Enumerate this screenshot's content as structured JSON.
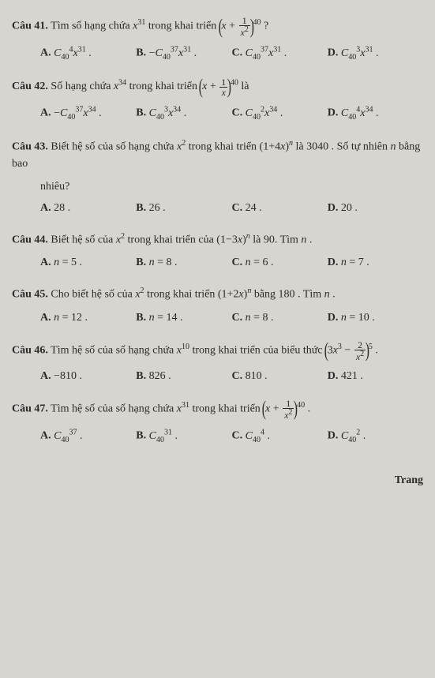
{
  "questions": [
    {
      "label": "Câu 41.",
      "stem_html": "Tìm số hạng chứa <i>x</i><sup>31</sup> trong khai triển <span class=\"par\">(</span><i>x</i> + <span class=\"frac\"><span class=\"n\">1</span><span class=\"d\"><i>x</i><sup>2</sup></span></span><span class=\"par\">)</span><sup>40</sup> ?",
      "sub": null,
      "opts": [
        "<i>C</i><sub>40</sub><sup>4</sup><i>x</i><sup>31</sup> .",
        "−<i>C</i><sub>40</sub><sup>37</sup><i>x</i><sup>31</sup> .",
        "<i>C</i><sub>40</sub><sup>37</sup><i>x</i><sup>31</sup> .",
        "<i>C</i><sub>40</sub><sup>3</sup><i>x</i><sup>31</sup> ."
      ]
    },
    {
      "label": "Câu 42.",
      "stem_html": "Số hạng chứa <i>x</i><sup>34</sup> trong khai triển <span class=\"par\">(</span><i>x</i> + <span class=\"frac\"><span class=\"n\">1</span><span class=\"d\"><i>x</i></span></span><span class=\"par\">)</span><sup>40</sup> là",
      "sub": null,
      "opts": [
        "−<i>C</i><sub>40</sub><sup>37</sup><i>x</i><sup>34</sup> .",
        "<i>C</i><sub>40</sub><sup>3</sup><i>x</i><sup>34</sup> .",
        "<i>C</i><sub>40</sub><sup>2</sup><i>x</i><sup>34</sup> .",
        "<i>C</i><sub>40</sub><sup>4</sup><i>x</i><sup>34</sup> ."
      ]
    },
    {
      "label": "Câu 43.",
      "stem_html": "Biết hệ số của số hạng chứa <i>x</i><sup>2</sup> trong khai triển (1+4<i>x</i>)<sup><i>n</i></sup> là 3040 . Số tự nhiên <i>n</i> bằng bao",
      "sub": "nhiêu?",
      "opts": [
        "28 .",
        "26 .",
        "24 .",
        "20 ."
      ]
    },
    {
      "label": "Câu 44.",
      "stem_html": "Biết hệ số của <i>x</i><sup>2</sup> trong khai triển của (1−3<i>x</i>)<sup><i>n</i></sup> là 90. Tìm <i>n</i> .",
      "sub": null,
      "opts": [
        "<i>n</i> = 5 .",
        "<i>n</i> = 8 .",
        "<i>n</i> = 6 .",
        "<i>n</i> = 7 ."
      ]
    },
    {
      "label": "Câu 45.",
      "stem_html": "Cho biết hệ số của <i>x</i><sup>2</sup> trong khai triển (1+2<i>x</i>)<sup><i>n</i></sup> bằng 180 . Tìm <i>n</i> .",
      "sub": null,
      "opts": [
        "<i>n</i> = 12 .",
        "<i>n</i> = 14 .",
        "<i>n</i> = 8 .",
        "<i>n</i> = 10 ."
      ]
    },
    {
      "label": "Câu 46.",
      "stem_html": "Tìm hệ số của số hạng chứa <i>x</i><sup>10</sup> trong khai triển của biểu thức <span class=\"par\">(</span>3<i>x</i><sup>3</sup> − <span class=\"frac\"><span class=\"n\">2</span><span class=\"d\"><i>x</i><sup>2</sup></span></span><span class=\"par\">)</span><sup>5</sup> .",
      "sub": null,
      "opts": [
        "−810 .",
        "826 .",
        "810 .",
        "421 ."
      ]
    },
    {
      "label": "Câu 47.",
      "stem_html": "Tìm hệ số của số hạng chứa <i>x</i><sup>31</sup> trong khai triển <span class=\"par\">(</span><i>x</i> + <span class=\"frac\"><span class=\"n\">1</span><span class=\"d\"><i>x</i><sup>2</sup></span></span><span class=\"par\">)</span><sup>40</sup> .",
      "sub": null,
      "opts": [
        "<i>C</i><sub>40</sub><sup>37</sup> .",
        "<i>C</i><sub>40</sub><sup>31</sup> .",
        "<i>C</i><sub>40</sub><sup>4</sup> .",
        "<i>C</i><sub>40</sub><sup>2</sup> ."
      ]
    }
  ],
  "opt_letters": [
    "A.",
    "B.",
    "C.",
    "D."
  ],
  "footer": "Trang"
}
